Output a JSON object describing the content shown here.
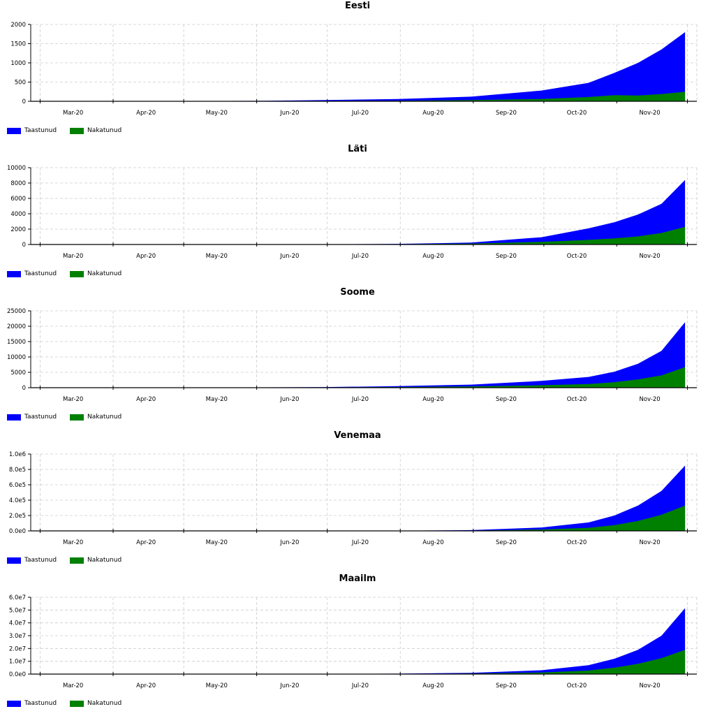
{
  "colors": {
    "recovered": "#0000ff",
    "infected": "#008000",
    "grid": "#cccccc",
    "axis": "#000000"
  },
  "legend": {
    "recovered_label": "Taastunud",
    "infected_label": "Nakatunud"
  },
  "chart_data": [
    {
      "type": "area",
      "title": "Eesti",
      "x": [
        "2020-02-26",
        "2020-03-31",
        "2020-04-30",
        "2020-05-31",
        "2020-06-30",
        "2020-07-31",
        "2020-08-31",
        "2020-09-30",
        "2020-10-20",
        "2020-10-31",
        "2020-11-10",
        "2020-11-20",
        "2020-11-30"
      ],
      "x_tick_labels": [
        "Mar-20",
        "Apr-20",
        "May-20",
        "Jun-20",
        "Jul-20",
        "Aug-20",
        "Sep-20",
        "Oct-20",
        "Nov-20"
      ],
      "y_tick_labels": [
        "0",
        "500",
        "1000",
        "1500",
        "2000"
      ],
      "ylim": [
        0,
        2000
      ],
      "series": [
        {
          "name": "Taastunud",
          "values": [
            0,
            2,
            5,
            10,
            30,
            60,
            120,
            280,
            480,
            740,
            1000,
            1350,
            1800
          ]
        },
        {
          "name": "Nakatunud",
          "values": [
            0,
            0,
            1,
            3,
            8,
            15,
            30,
            60,
            110,
            160,
            150,
            190,
            250
          ]
        }
      ],
      "grid": true,
      "legend_position": "bottom-left"
    },
    {
      "type": "area",
      "title": "Läti",
      "x": [
        "2020-02-26",
        "2020-03-31",
        "2020-04-30",
        "2020-05-31",
        "2020-06-30",
        "2020-07-31",
        "2020-08-31",
        "2020-09-30",
        "2020-10-20",
        "2020-10-31",
        "2020-11-10",
        "2020-11-20",
        "2020-11-30"
      ],
      "x_tick_labels": [
        "Mar-20",
        "Apr-20",
        "May-20",
        "Jun-20",
        "Jul-20",
        "Aug-20",
        "Sep-20",
        "Oct-20",
        "Nov-20"
      ],
      "y_tick_labels": [
        "0",
        "2000",
        "4000",
        "6000",
        "8000",
        "10000"
      ],
      "ylim": [
        0,
        10000
      ],
      "series": [
        {
          "name": "Taastunud",
          "values": [
            0,
            0,
            2,
            5,
            15,
            80,
            250,
            950,
            2100,
            2900,
            3900,
            5300,
            8400
          ]
        },
        {
          "name": "Nakatunud",
          "values": [
            0,
            0,
            1,
            3,
            8,
            40,
            120,
            350,
            600,
            800,
            1050,
            1500,
            2300
          ]
        }
      ],
      "grid": true,
      "legend_position": "bottom-left"
    },
    {
      "type": "area",
      "title": "Soome",
      "x": [
        "2020-02-26",
        "2020-03-31",
        "2020-04-30",
        "2020-05-31",
        "2020-06-30",
        "2020-07-31",
        "2020-08-31",
        "2020-09-30",
        "2020-10-20",
        "2020-10-31",
        "2020-11-10",
        "2020-11-20",
        "2020-11-30"
      ],
      "x_tick_labels": [
        "Mar-20",
        "Apr-20",
        "May-20",
        "Jun-20",
        "Jul-20",
        "Aug-20",
        "Sep-20",
        "Oct-20",
        "Nov-20"
      ],
      "y_tick_labels": [
        "0",
        "5000",
        "10000",
        "15000",
        "20000",
        "25000"
      ],
      "ylim": [
        0,
        25000
      ],
      "series": [
        {
          "name": "Taastunud",
          "values": [
            0,
            20,
            40,
            80,
            200,
            500,
            1000,
            2200,
            3500,
            5200,
            7800,
            12000,
            21300
          ]
        },
        {
          "name": "Nakatunud",
          "values": [
            0,
            10,
            20,
            40,
            100,
            200,
            400,
            800,
            1200,
            1800,
            2700,
            4000,
            6700
          ]
        }
      ],
      "grid": true,
      "legend_position": "bottom-left"
    },
    {
      "type": "area",
      "title": "Venemaa",
      "x": [
        "2020-02-26",
        "2020-03-31",
        "2020-04-30",
        "2020-05-31",
        "2020-06-30",
        "2020-07-31",
        "2020-08-31",
        "2020-09-30",
        "2020-10-20",
        "2020-10-31",
        "2020-11-10",
        "2020-11-20",
        "2020-11-30"
      ],
      "x_tick_labels": [
        "Mar-20",
        "Apr-20",
        "May-20",
        "Jun-20",
        "Jul-20",
        "Aug-20",
        "Sep-20",
        "Oct-20",
        "Nov-20"
      ],
      "y_tick_labels": [
        "0.0e0",
        "2.0e5",
        "4.0e5",
        "6.0e5",
        "8.0e5",
        "1.0e6"
      ],
      "ylim": [
        0,
        1000000
      ],
      "series": [
        {
          "name": "Taastunud",
          "values": [
            0,
            100,
            300,
            700,
            1500,
            3000,
            10000,
            45000,
            110000,
            200000,
            330000,
            520000,
            850000
          ]
        },
        {
          "name": "Nakatunud",
          "values": [
            0,
            50,
            150,
            300,
            700,
            1500,
            4000,
            17000,
            40000,
            75000,
            130000,
            210000,
            330000
          ]
        }
      ],
      "grid": true,
      "legend_position": "bottom-left"
    },
    {
      "type": "area",
      "title": "Maailm",
      "x": [
        "2020-02-26",
        "2020-03-31",
        "2020-04-30",
        "2020-05-31",
        "2020-06-30",
        "2020-07-31",
        "2020-08-31",
        "2020-09-30",
        "2020-10-20",
        "2020-10-31",
        "2020-11-10",
        "2020-11-20",
        "2020-11-30"
      ],
      "x_tick_labels": [
        "Mar-20",
        "Apr-20",
        "May-20",
        "Jun-20",
        "Jul-20",
        "Aug-20",
        "Sep-20",
        "Oct-20",
        "Nov-20"
      ],
      "y_tick_labels": [
        "0.0e0",
        "1.0e7",
        "2.0e7",
        "3.0e7",
        "4.0e7",
        "5.0e7",
        "6.0e7"
      ],
      "ylim": [
        0,
        60000000
      ],
      "series": [
        {
          "name": "Taastunud",
          "values": [
            0,
            5000,
            15000,
            40000,
            100000,
            300000,
            1000000,
            3000000,
            7000000,
            12000000,
            19000000,
            30000000,
            51500000
          ]
        },
        {
          "name": "Nakatunud",
          "values": [
            0,
            2000,
            6000,
            15000,
            40000,
            120000,
            400000,
            1200000,
            2800000,
            5000000,
            8000000,
            12500000,
            19000000
          ]
        }
      ],
      "grid": true,
      "legend_position": "bottom-left"
    }
  ]
}
